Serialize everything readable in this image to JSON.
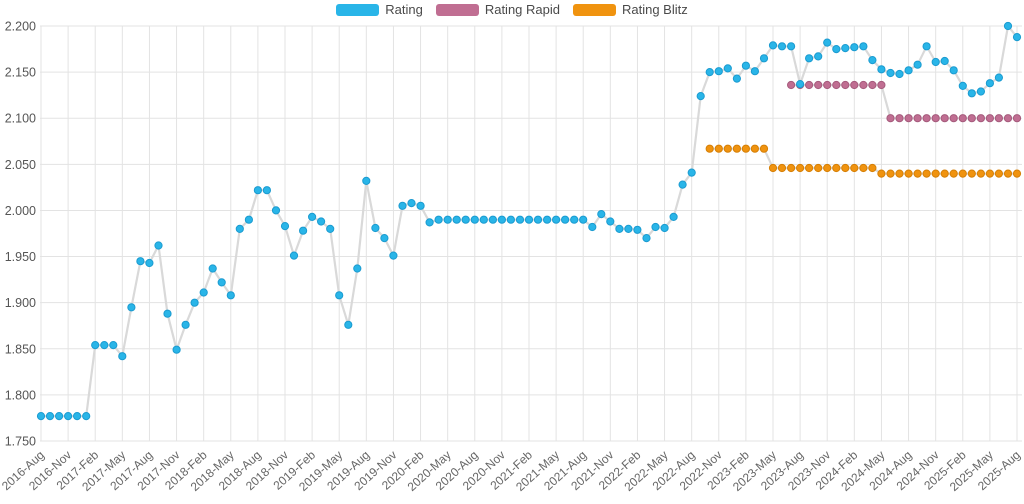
{
  "chart_data": {
    "type": "line",
    "title": "",
    "xlabel": "",
    "ylabel": "",
    "grid": true,
    "legend_position": "top-center",
    "ylim": [
      1750,
      2200
    ],
    "y_ticks": [
      {
        "value": 2200,
        "label": "2.200"
      },
      {
        "value": 2150,
        "label": "2.150"
      },
      {
        "value": 2100,
        "label": "2.100"
      },
      {
        "value": 2050,
        "label": "2.050"
      },
      {
        "value": 2000,
        "label": "2.000"
      },
      {
        "value": 1950,
        "label": "1.950"
      },
      {
        "value": 1900,
        "label": "1.900"
      },
      {
        "value": 1850,
        "label": "1.850"
      },
      {
        "value": 1800,
        "label": "1.800"
      },
      {
        "value": 1750,
        "label": "1.750"
      }
    ],
    "x_tick_every": 3,
    "x": [
      "2016-Aug",
      "2016-Sep",
      "2016-Oct",
      "2016-Nov",
      "2016-Dec",
      "2017-Jan",
      "2017-Feb",
      "2017-Mar",
      "2017-Apr",
      "2017-May",
      "2017-Jun",
      "2017-Jul",
      "2017-Aug",
      "2017-Sep",
      "2017-Oct",
      "2017-Nov",
      "2017-Dec",
      "2018-Jan",
      "2018-Feb",
      "2018-Mar",
      "2018-Apr",
      "2018-May",
      "2018-Jun",
      "2018-Jul",
      "2018-Aug",
      "2018-Sep",
      "2018-Oct",
      "2018-Nov",
      "2018-Dec",
      "2019-Jan",
      "2019-Feb",
      "2019-Mar",
      "2019-Apr",
      "2019-May",
      "2019-Jun",
      "2019-Jul",
      "2019-Aug",
      "2019-Sep",
      "2019-Oct",
      "2019-Nov",
      "2019-Dec",
      "2020-Jan",
      "2020-Feb",
      "2020-Mar",
      "2020-Apr",
      "2020-May",
      "2020-Jun",
      "2020-Jul",
      "2020-Aug",
      "2020-Sep",
      "2020-Oct",
      "2020-Nov",
      "2020-Dec",
      "2021-Jan",
      "2021-Feb",
      "2021-Mar",
      "2021-Apr",
      "2021-May",
      "2021-Jun",
      "2021-Jul",
      "2021-Aug",
      "2021-Sep",
      "2021-Oct",
      "2021-Nov",
      "2021-Dec",
      "2022-Jan",
      "2022-Feb",
      "2022-Mar",
      "2022-Apr",
      "2022-May",
      "2022-Jun",
      "2022-Jul",
      "2022-Aug",
      "2022-Sep",
      "2022-Oct",
      "2022-Nov",
      "2022-Dec",
      "2023-Jan",
      "2023-Feb",
      "2023-Mar",
      "2023-Apr",
      "2023-May",
      "2023-Jun",
      "2023-Jul",
      "2023-Aug",
      "2023-Sep",
      "2023-Oct",
      "2023-Nov",
      "2023-Dec",
      "2024-Jan",
      "2024-Feb",
      "2024-Mar",
      "2024-Apr",
      "2024-May",
      "2024-Jun",
      "2024-Jul",
      "2024-Aug",
      "2024-Sep",
      "2024-Oct",
      "2024-Nov",
      "2024-Dec",
      "2025-Jan",
      "2025-Feb",
      "2025-Mar",
      "2025-Apr",
      "2025-May",
      "2025-Jun",
      "2025-Jul",
      "2025-Aug"
    ],
    "connector_color": "#d9d9d9",
    "grid_color": "#e3e3e3",
    "axis_label_color": "#666666",
    "series": [
      {
        "name": "Rating",
        "color": "#29b5e8",
        "point_stroke": "#1b9bd0",
        "values": [
          1777,
          1777,
          1777,
          1777,
          1777,
          1777,
          1854,
          1854,
          1854,
          1842,
          1895,
          1945,
          1943,
          1962,
          1888,
          1849,
          1876,
          1900,
          1911,
          1937,
          1922,
          1908,
          1980,
          1990,
          2022,
          2022,
          2000,
          1983,
          1951,
          1978,
          1993,
          1988,
          1980,
          1908,
          1876,
          1937,
          2032,
          1981,
          1970,
          1951,
          2005,
          2008,
          2005,
          1987,
          1990,
          1990,
          1990,
          1990,
          1990,
          1990,
          1990,
          1990,
          1990,
          1990,
          1990,
          1990,
          1990,
          1990,
          1990,
          1990,
          1990,
          1982,
          1996,
          1988,
          1980,
          1980,
          1979,
          1970,
          1982,
          1981,
          1993,
          2028,
          2041,
          2124,
          2150,
          2151,
          2154,
          2143,
          2157,
          2151,
          2165,
          2179,
          2178,
          2178,
          2137,
          2165,
          2167,
          2182,
          2175,
          2176,
          2177,
          2178,
          2163,
          2153,
          2149,
          2148,
          2152,
          2158,
          2178,
          2161,
          2162,
          2152,
          2135,
          2127,
          2129,
          2138,
          2144,
          2200,
          2188
        ]
      },
      {
        "name": "Rating Rapid",
        "color": "#c06e92",
        "point_stroke": "#a55b7c",
        "values": [
          null,
          null,
          null,
          null,
          null,
          null,
          null,
          null,
          null,
          null,
          null,
          null,
          null,
          null,
          null,
          null,
          null,
          null,
          null,
          null,
          null,
          null,
          null,
          null,
          null,
          null,
          null,
          null,
          null,
          null,
          null,
          null,
          null,
          null,
          null,
          null,
          null,
          null,
          null,
          null,
          null,
          null,
          null,
          null,
          null,
          null,
          null,
          null,
          null,
          null,
          null,
          null,
          null,
          null,
          null,
          null,
          null,
          null,
          null,
          null,
          null,
          null,
          null,
          null,
          null,
          null,
          null,
          null,
          null,
          null,
          null,
          null,
          null,
          null,
          null,
          null,
          null,
          null,
          null,
          null,
          null,
          null,
          null,
          2136,
          2136,
          2136,
          2136,
          2136,
          2136,
          2136,
          2136,
          2136,
          2136,
          2136,
          2100,
          2100,
          2100,
          2100,
          2100,
          2100,
          2100,
          2100,
          2100,
          2100,
          2100,
          2100,
          2100,
          2100,
          2100
        ]
      },
      {
        "name": "Rating Blitz",
        "color": "#f0930f",
        "point_stroke": "#d57f06",
        "values": [
          null,
          null,
          null,
          null,
          null,
          null,
          null,
          null,
          null,
          null,
          null,
          null,
          null,
          null,
          null,
          null,
          null,
          null,
          null,
          null,
          null,
          null,
          null,
          null,
          null,
          null,
          null,
          null,
          null,
          null,
          null,
          null,
          null,
          null,
          null,
          null,
          null,
          null,
          null,
          null,
          null,
          null,
          null,
          null,
          null,
          null,
          null,
          null,
          null,
          null,
          null,
          null,
          null,
          null,
          null,
          null,
          null,
          null,
          null,
          null,
          null,
          null,
          null,
          null,
          null,
          null,
          null,
          null,
          null,
          null,
          null,
          null,
          null,
          null,
          2067,
          2067,
          2067,
          2067,
          2067,
          2067,
          2067,
          2046,
          2046,
          2046,
          2046,
          2046,
          2046,
          2046,
          2046,
          2046,
          2046,
          2046,
          2046,
          2040,
          2040,
          2040,
          2040,
          2040,
          2040,
          2040,
          2040,
          2040,
          2040,
          2040,
          2040,
          2040,
          2040,
          2040,
          2040
        ]
      }
    ]
  }
}
